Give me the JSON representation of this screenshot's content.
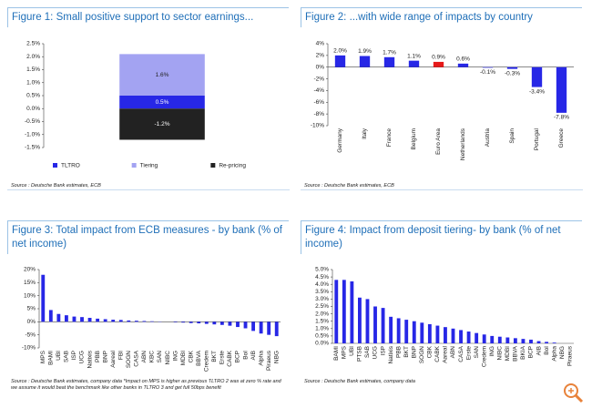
{
  "chart_data": [
    {
      "type": "bar",
      "stacked": true,
      "title": "Figure 1: Small positive support to sector earnings...",
      "categories": [
        null
      ],
      "series": [
        {
          "name": "TLTRO",
          "color": "#2727e6",
          "values": [
            0.5
          ],
          "value_labels": [
            "0.5%"
          ]
        },
        {
          "name": "Tiering",
          "color": "#a3a3f2",
          "values": [
            1.6
          ],
          "value_labels": [
            "1.6%"
          ]
        },
        {
          "name": "Re-pricing",
          "color": "#222222",
          "values": [
            -1.2
          ],
          "value_labels": [
            "-1.2%"
          ]
        }
      ],
      "ylim": [
        -1.5,
        2.5
      ],
      "yticks": [
        {
          "value": -1.5,
          "label": "-1.5%"
        },
        {
          "value": -1,
          "label": "-1.0%"
        },
        {
          "value": -0.5,
          "label": "-0.5%"
        },
        {
          "value": 0,
          "label": "0.0%"
        },
        {
          "value": 0.5,
          "label": "0.5%"
        },
        {
          "value": 1,
          "label": "1.0%"
        },
        {
          "value": 1.5,
          "label": "1.5%"
        },
        {
          "value": 2,
          "label": "2.0%"
        },
        {
          "value": 2.5,
          "label": "2.5%"
        }
      ],
      "source": "Source : Deutsche Bank estimates, ECB"
    },
    {
      "type": "bar",
      "title": "Figure 2: ...with wide range of impacts by country",
      "categories": [
        "Germany",
        "Italy",
        "France",
        "Belgium",
        "Euro Area",
        "Netherlands",
        "Austria",
        "Spain",
        "Portugal",
        "Greece"
      ],
      "values": [
        2.0,
        1.9,
        1.7,
        1.1,
        0.9,
        0.6,
        -0.1,
        -0.3,
        -3.4,
        -7.8
      ],
      "value_labels": [
        "2.0%",
        "1.9%",
        "1.7%",
        "1.1%",
        "0.9%",
        "0.6%",
        "-0.1%",
        "-0.3%",
        "-3.4%",
        "-7.8%"
      ],
      "colors": [
        "#2727e6",
        "#2727e6",
        "#2727e6",
        "#2727e6",
        "#e61919",
        "#2727e6",
        "#2727e6",
        "#2727e6",
        "#2727e6",
        "#2727e6"
      ],
      "ylim": [
        -10,
        4
      ],
      "yticks": [
        {
          "value": -10,
          "label": "-10%"
        },
        {
          "value": -8,
          "label": "-8%"
        },
        {
          "value": -6,
          "label": "-6%"
        },
        {
          "value": -4,
          "label": "-4%"
        },
        {
          "value": -2,
          "label": "-2%"
        },
        {
          "value": 0,
          "label": "0%"
        },
        {
          "value": 2,
          "label": "2%"
        },
        {
          "value": 4,
          "label": "4%"
        }
      ],
      "source": "Source : Deutsche Bank estimates, ECB"
    },
    {
      "type": "bar",
      "title": "Figure 3: Total impact from ECB measures - by bank (% of net income)",
      "categories": [
        "MPS",
        "BAMI",
        "UBI",
        "SAB",
        "ISP",
        "UCG",
        "Natixis",
        "PBB",
        "BNP",
        "Aareal",
        "FBI",
        "SOGN",
        "CASA",
        "ABN",
        "KBC",
        "SAN",
        "NIBC",
        "ING",
        "MDBI",
        "CBK",
        "BBVA",
        "Credem",
        "BKT",
        "Erste",
        "CABK",
        "BCP",
        "BoI",
        "AIB",
        "Alpha",
        "Piraeus",
        "NBG"
      ],
      "values": [
        18,
        4.5,
        3,
        2.5,
        2,
        1.8,
        1.5,
        1.2,
        1,
        0.8,
        0.7,
        0.5,
        0.4,
        0.3,
        0.2,
        0.1,
        0,
        -0.2,
        -0.3,
        -0.5,
        -0.6,
        -0.8,
        -1,
        -1.2,
        -1.5,
        -2,
        -2.5,
        -3.5,
        -4.5,
        -5,
        -5.5
      ],
      "color": "#2727e6",
      "ylim": [
        -10,
        20
      ],
      "yticks": [
        {
          "value": -10,
          "label": "-10%"
        },
        {
          "value": -5,
          "label": "-5%"
        },
        {
          "value": 0,
          "label": "0%"
        },
        {
          "value": 5,
          "label": "5%"
        },
        {
          "value": 10,
          "label": "10%"
        },
        {
          "value": 15,
          "label": "15%"
        },
        {
          "value": 20,
          "label": "20%"
        }
      ],
      "source": "Source : Deutsche Bank estimates, company data *Impact on MPS is higher as previous TLTRO 2 was at zero % rate and we assume it would beat the benchmark like other banks in TLTRO 3 and get full 50bps benefit"
    },
    {
      "type": "bar",
      "title": "Figure 4: Impact from deposit tiering- by bank (% of net income)",
      "categories": [
        "BAMI",
        "MPS",
        "UBI",
        "PTSB",
        "SAB",
        "UCG",
        "ISP",
        "Natixis",
        "PBB",
        "BKT",
        "BNP",
        "SOGN",
        "CBK",
        "CABK",
        "Aareal",
        "ABN",
        "CASA",
        "Erste",
        "SAN",
        "Credem",
        "ING",
        "NIBC",
        "MDBI",
        "BBVA",
        "BKIA",
        "BCP",
        "AIB",
        "BoI",
        "Alpha",
        "NBG",
        "Piraeus"
      ],
      "values": [
        4.3,
        4.3,
        4.2,
        3.1,
        3.0,
        2.5,
        2.4,
        1.8,
        1.7,
        1.6,
        1.5,
        1.4,
        1.3,
        1.2,
        1.1,
        1.0,
        0.9,
        0.8,
        0.7,
        0.6,
        0.5,
        0.45,
        0.4,
        0.35,
        0.3,
        0.25,
        0.15,
        0.1,
        0.05,
        0,
        0
      ],
      "color": "#2727e6",
      "ylim": [
        0,
        5
      ],
      "yticks": [
        {
          "value": 0,
          "label": "0.0%"
        },
        {
          "value": 0.5,
          "label": "0.5%"
        },
        {
          "value": 1,
          "label": "1.0%"
        },
        {
          "value": 1.5,
          "label": "1.5%"
        },
        {
          "value": 2,
          "label": "2.0%"
        },
        {
          "value": 2.5,
          "label": "2.5%"
        },
        {
          "value": 3,
          "label": "3.0%"
        },
        {
          "value": 3.5,
          "label": "3.5%"
        },
        {
          "value": 4,
          "label": "4.0%"
        },
        {
          "value": 4.5,
          "label": "4.5%"
        },
        {
          "value": 5,
          "label": "5.0%"
        }
      ],
      "source": "Source : Deutsche Bank estimates, company data"
    }
  ]
}
